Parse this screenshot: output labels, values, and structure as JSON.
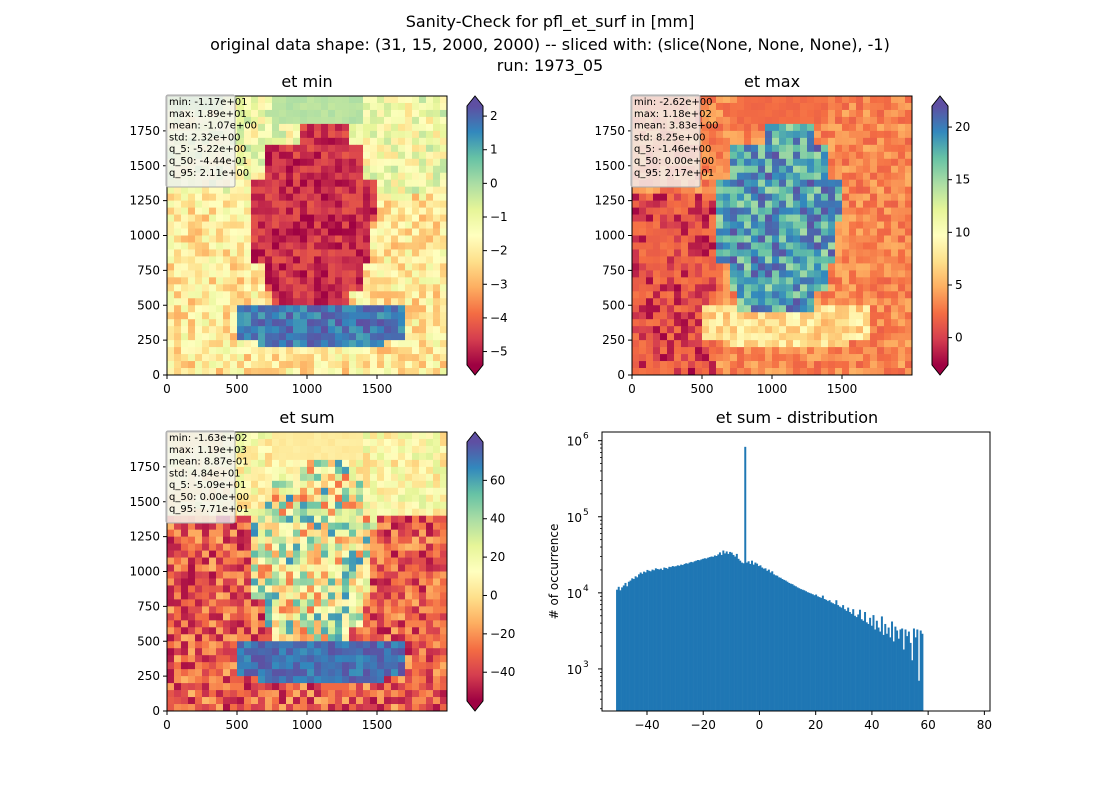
{
  "figure": {
    "title_lines": [
      "Sanity-Check for pfl_et_surf in [mm]",
      "original data shape: (31, 15, 2000, 2000) -- sliced with: (slice(None, None, None), -1)",
      "run: 1973_05"
    ],
    "colormap": [
      "#9e0142",
      "#d53e4f",
      "#f46d43",
      "#fdae61",
      "#fee08b",
      "#ffffbf",
      "#e6f598",
      "#abdda4",
      "#66c2a5",
      "#3288bd",
      "#5e4fa2"
    ]
  },
  "chart_data": [
    {
      "type": "heatmap",
      "title": "et min",
      "xticks": [
        "0",
        "500",
        "1000",
        "1500"
      ],
      "yticks": [
        "0",
        "250",
        "500",
        "750",
        "1000",
        "1250",
        "1500",
        "1750"
      ],
      "xlim": [
        0,
        2000
      ],
      "ylim": [
        0,
        2000
      ],
      "colorbar": {
        "min": -5.4,
        "max": 2.3,
        "ticks": [
          "2",
          "1",
          "0",
          "−1",
          "−2",
          "−3",
          "−4",
          "−5"
        ],
        "tick_values": [
          2,
          1,
          0,
          -1,
          -2,
          -3,
          -4,
          -5
        ],
        "extend": "both"
      },
      "stats": [
        "min: -1.17e+01",
        "max: 1.89e+01",
        "mean: -1.07e+00",
        "std: 2.32e+00",
        "q_5: -5.22e+00",
        "q_50: -4.44e-01",
        "q_95: 2.11e+00"
      ]
    },
    {
      "type": "heatmap",
      "title": "et max",
      "xticks": [
        "0",
        "500",
        "1000",
        "1500"
      ],
      "yticks": [
        "0",
        "250",
        "500",
        "750",
        "1000",
        "1250",
        "1500",
        "1750"
      ],
      "xlim": [
        0,
        2000
      ],
      "ylim": [
        0,
        2000
      ],
      "colorbar": {
        "min": -2.6,
        "max": 22,
        "ticks": [
          "20",
          "15",
          "10",
          "5",
          "0"
        ],
        "tick_values": [
          20,
          15,
          10,
          5,
          0
        ],
        "extend": "both"
      },
      "stats": [
        "min: -2.62e+00",
        "max: 1.18e+02",
        "mean: 3.83e+00",
        "std: 8.25e+00",
        "q_5: -1.46e+00",
        "q_50: 0.00e+00",
        "q_95: 2.17e+01"
      ]
    },
    {
      "type": "heatmap",
      "title": "et sum",
      "xticks": [
        "0",
        "500",
        "1000",
        "1500"
      ],
      "yticks": [
        "0",
        "250",
        "500",
        "750",
        "1000",
        "1250",
        "1500",
        "1750"
      ],
      "xlim": [
        0,
        2000
      ],
      "ylim": [
        0,
        2000
      ],
      "colorbar": {
        "min": -55,
        "max": 80,
        "ticks": [
          "60",
          "40",
          "20",
          "0",
          "−20",
          "−40"
        ],
        "tick_values": [
          60,
          40,
          20,
          0,
          -20,
          -40
        ],
        "extend": "both"
      },
      "stats": [
        "min: -1.63e+02",
        "max: 1.19e+03",
        "mean: 8.87e-01",
        "std: 4.84e+01",
        "q_5: -5.09e+01",
        "q_50: 0.00e+00",
        "q_95: 7.71e+01"
      ]
    },
    {
      "type": "bar",
      "title": "et sum - distribution",
      "ylabel": "# of occurrence",
      "xlabel": "",
      "yscale": "log",
      "xlim": [
        -56,
        82
      ],
      "ylim": [
        280,
        1300000
      ],
      "xticks": [
        "−40",
        "−20",
        "0",
        "20",
        "40",
        "60",
        "80"
      ],
      "xtick_values": [
        -40,
        -20,
        0,
        20,
        40,
        60,
        80
      ],
      "yticks": [
        "10",
        "10",
        "10",
        "10"
      ],
      "ytick_exponents": [
        "3",
        "4",
        "5",
        "6"
      ],
      "ytick_values": [
        1000,
        10000,
        100000,
        1000000
      ],
      "bin_start": -51,
      "bin_width": 0.6,
      "values": [
        11000,
        12000,
        10800,
        11800,
        12500,
        13500,
        12200,
        14000,
        14500,
        15500,
        15200,
        16500,
        16000,
        17500,
        18500,
        17800,
        19000,
        18600,
        20000,
        19500,
        19200,
        20200,
        19800,
        21000,
        20600,
        20300,
        20800,
        20000,
        21500,
        21200,
        20800,
        22000,
        21800,
        22500,
        22200,
        22400,
        23000,
        22700,
        23500,
        23200,
        24000,
        24500,
        24200,
        25000,
        25500,
        25200,
        26000,
        26500,
        27000,
        26800,
        27500,
        28000,
        28500,
        28200,
        29000,
        29500,
        30000,
        29800,
        31000,
        30500,
        32000,
        34000,
        31500,
        36000,
        33000,
        35000,
        32500,
        34500,
        33800,
        31500,
        30000,
        32500,
        28000,
        26500,
        25000,
        24500,
        830000,
        25000,
        26000,
        24000,
        26500,
        23500,
        25000,
        24200,
        22500,
        23000,
        21500,
        20800,
        21000,
        19500,
        20200,
        18500,
        19200,
        17500,
        17000,
        16800,
        16000,
        15800,
        15200,
        14800,
        14500,
        14000,
        13500,
        13200,
        13000,
        12500,
        12200,
        11800,
        11500,
        11200,
        11000,
        10800,
        10500,
        10200,
        10000,
        9800,
        9600,
        9300,
        9500,
        9000,
        8800,
        8600,
        9200,
        8300,
        8100,
        7800,
        8000,
        7500,
        7300,
        7100,
        8000,
        6900,
        6600,
        6400,
        6900,
        6100,
        5800,
        6400,
        5600,
        5300,
        6100,
        5000,
        4800,
        5200,
        6000,
        4500,
        4300,
        5600,
        4100,
        3900,
        4700,
        3700,
        5100,
        3300,
        4300,
        3500,
        3100,
        4900,
        2800,
        3900,
        2900,
        3500,
        2600,
        4200,
        2300,
        3600,
        3200,
        2500,
        3300,
        3400,
        1800,
        3300,
        2700,
        3100,
        2200,
        1300,
        3400,
        2600,
        3300,
        700,
        3200,
        2900
      ]
    }
  ]
}
